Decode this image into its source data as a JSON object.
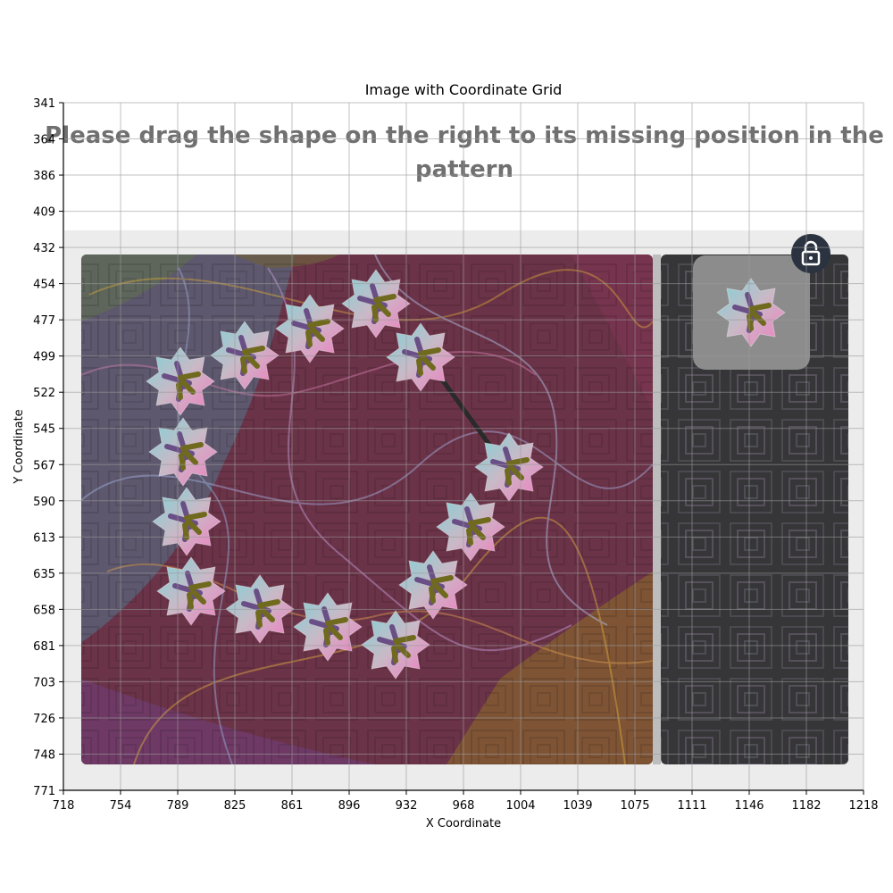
{
  "plot": {
    "title": "Image with Coordinate Grid",
    "xlabel": "X Coordinate",
    "ylabel": "Y Coordinate",
    "x_ticks": [
      "718",
      "754",
      "789",
      "825",
      "861",
      "896",
      "932",
      "968",
      "1004",
      "1039",
      "1075",
      "1111",
      "1146",
      "1182",
      "1218"
    ],
    "y_ticks": [
      "341",
      "364",
      "386",
      "409",
      "432",
      "454",
      "477",
      "499",
      "522",
      "545",
      "567",
      "590",
      "613",
      "635",
      "658",
      "681",
      "703",
      "726",
      "748",
      "771"
    ],
    "grid": true
  },
  "captcha": {
    "instruction_line1": "Please drag the shape on the right to its missing position in the",
    "instruction_line2": "pattern",
    "lock_icon": "lock-icon",
    "shape_icon": "star-shape-icon",
    "colors": {
      "panel": "#ececec",
      "left_background": "#6b3348",
      "right_background": "#3a3a3e",
      "piece_box": "#8c8c8c",
      "lock_circle": "#2b3340",
      "connector_line": "#2a2a2a"
    }
  }
}
